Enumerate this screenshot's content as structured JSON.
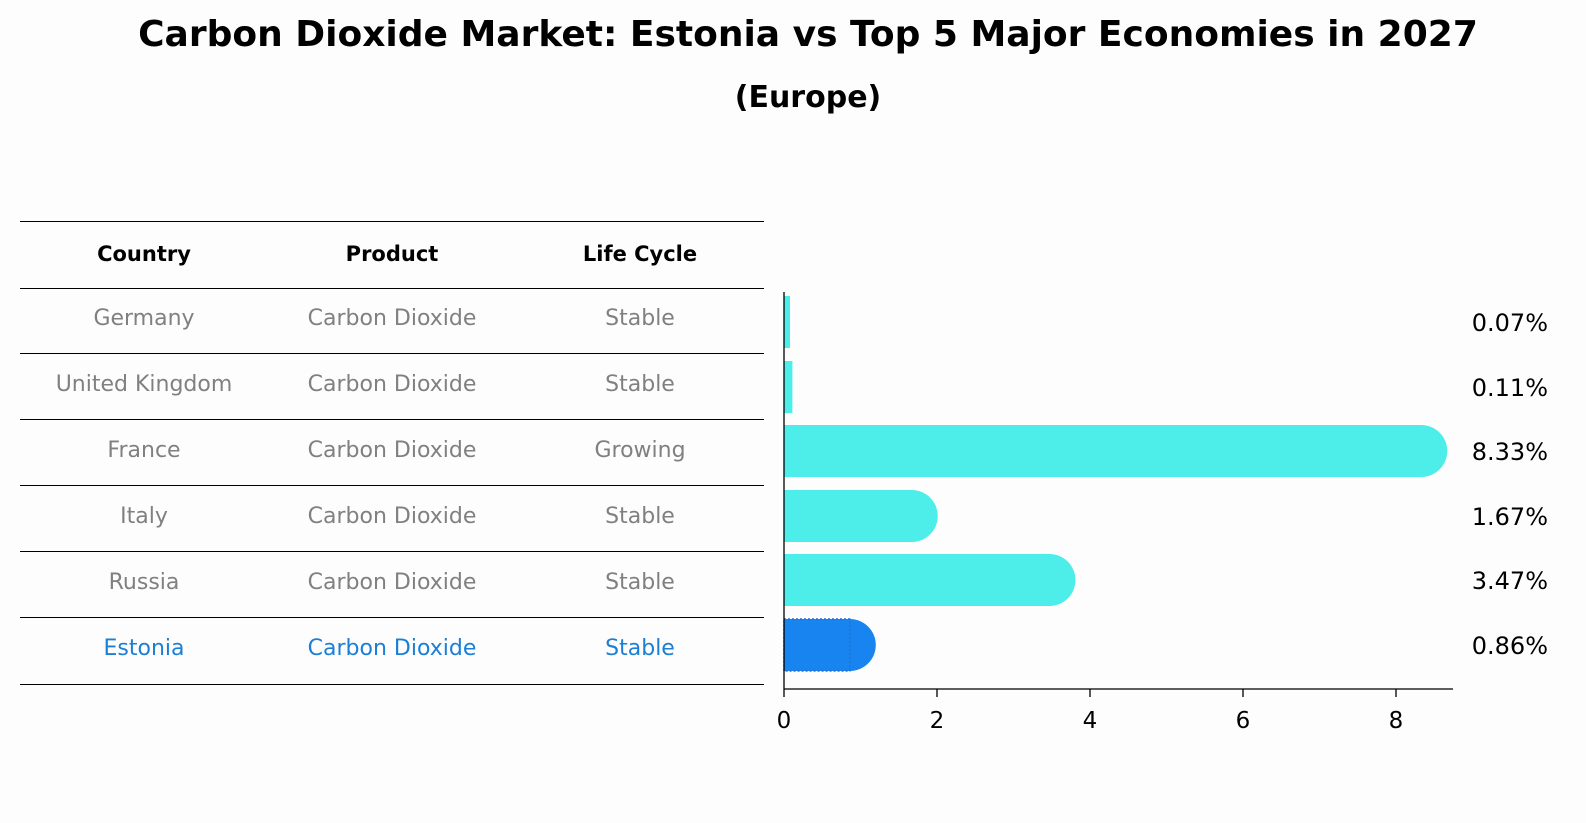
{
  "title": "Carbon Dioxide Market: Estonia vs Top 5 Major Economies in 2027",
  "subtitle": "(Europe)",
  "table": {
    "headers": [
      "Country",
      "Product",
      "Life Cycle"
    ],
    "rows": [
      [
        "Germany",
        "Carbon Dioxide",
        "Stable"
      ],
      [
        "United Kingdom",
        "Carbon Dioxide",
        "Stable"
      ],
      [
        "France",
        "Carbon Dioxide",
        "Growing"
      ],
      [
        "Italy",
        "Carbon Dioxide",
        "Stable"
      ],
      [
        "Russia",
        "Carbon Dioxide",
        "Stable"
      ],
      [
        "Estonia",
        "Carbon Dioxide",
        "Stable"
      ]
    ],
    "highlight_row": 5
  },
  "colors": {
    "bar": "#4deeea",
    "highlight_bar": "#1884f0",
    "highlight_text": "#1a7fd6",
    "body_text": "#808080"
  },
  "chart_data": {
    "type": "bar",
    "orientation": "horizontal",
    "categories": [
      "Germany",
      "United Kingdom",
      "France",
      "Italy",
      "Russia",
      "Estonia"
    ],
    "values": [
      0.07,
      0.11,
      8.33,
      1.67,
      3.47,
      0.86
    ],
    "value_labels": [
      "0.07%",
      "0.11%",
      "8.33%",
      "1.67%",
      "3.47%",
      "0.86%"
    ],
    "highlight": "Estonia",
    "xticks": [
      "0",
      "2",
      "4",
      "6",
      "8"
    ],
    "xlim": [
      0,
      8.7
    ],
    "grid": false
  }
}
